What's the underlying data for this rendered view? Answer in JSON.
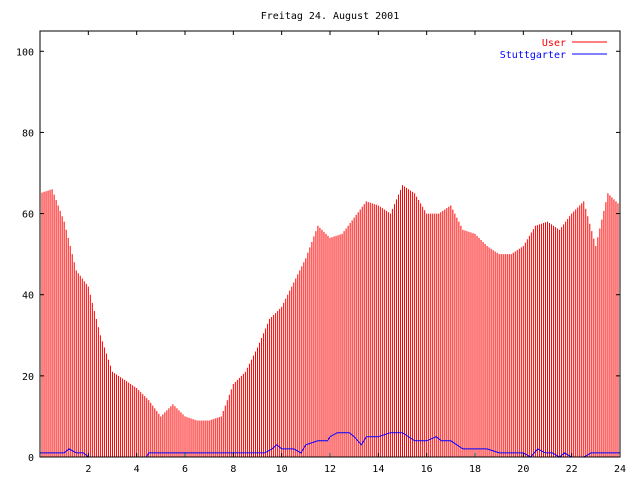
{
  "chart_data": {
    "type": "bar",
    "title": "Freitag 24. August 2001",
    "xlabel": "",
    "ylabel": "",
    "xlim": [
      0,
      24
    ],
    "ylim": [
      0,
      105
    ],
    "x_ticks": [
      2,
      4,
      6,
      8,
      10,
      12,
      14,
      16,
      18,
      20,
      22,
      24
    ],
    "y_ticks": [
      0,
      20,
      40,
      60,
      80,
      100
    ],
    "grid": false,
    "legend_position": "top-right",
    "series": [
      {
        "name": "User",
        "style": "impulses",
        "color": "#ff0000",
        "x": [
          0,
          0.5,
          1,
          1.5,
          2,
          2.5,
          3,
          3.5,
          4,
          4.5,
          5,
          5.5,
          6,
          6.5,
          7,
          7.5,
          8,
          8.5,
          9,
          9.5,
          10,
          10.5,
          11,
          11.5,
          12,
          12.5,
          13,
          13.5,
          14,
          14.5,
          15,
          15.5,
          16,
          16.5,
          17,
          17.5,
          18,
          18.5,
          19,
          19.5,
          20,
          20.5,
          21,
          21.5,
          22,
          22.5,
          23,
          23.5,
          24
        ],
        "values": [
          65,
          66,
          58,
          46,
          42,
          30,
          21,
          19,
          17,
          14,
          10,
          13,
          10,
          9,
          9,
          10,
          18,
          21,
          27,
          34,
          37,
          43,
          49,
          57,
          54,
          55,
          59,
          63,
          62,
          60,
          67,
          65,
          60,
          60,
          62,
          56,
          55,
          52,
          50,
          50,
          52,
          57,
          58,
          56,
          60,
          63,
          52,
          65,
          62
        ]
      },
      {
        "name": "Stuttgarter",
        "style": "line",
        "color": "#0000ff",
        "x": [
          0,
          0.5,
          1,
          1.2,
          1.5,
          1.8,
          2,
          2.5,
          3,
          3.5,
          4,
          4.4,
          4.5,
          5,
          6,
          7,
          8,
          9,
          9.3,
          9.6,
          9.8,
          10,
          10.3,
          10.5,
          10.8,
          11,
          11.5,
          11.9,
          12,
          12.3,
          12.8,
          13,
          13.3,
          13.5,
          14,
          14.5,
          15,
          15.5,
          16,
          16.4,
          16.6,
          17,
          17.5,
          18,
          18.5,
          19,
          19.5,
          20,
          20.3,
          20.6,
          20.9,
          21.2,
          21.5,
          21.7,
          22,
          22.5,
          22.8,
          23,
          23.5,
          24
        ],
        "values": [
          1,
          1,
          1,
          2,
          1,
          1,
          0,
          0,
          0,
          0,
          0,
          0,
          1,
          1,
          1,
          1,
          1,
          1,
          1,
          2,
          3,
          2,
          2,
          2,
          1,
          3,
          4,
          4,
          5,
          6,
          6,
          5,
          3,
          5,
          5,
          6,
          6,
          4,
          4,
          5,
          4,
          4,
          2,
          2,
          2,
          1,
          1,
          1,
          0,
          2,
          1,
          1,
          0,
          1,
          0,
          0,
          1,
          1,
          1,
          1
        ]
      }
    ]
  }
}
